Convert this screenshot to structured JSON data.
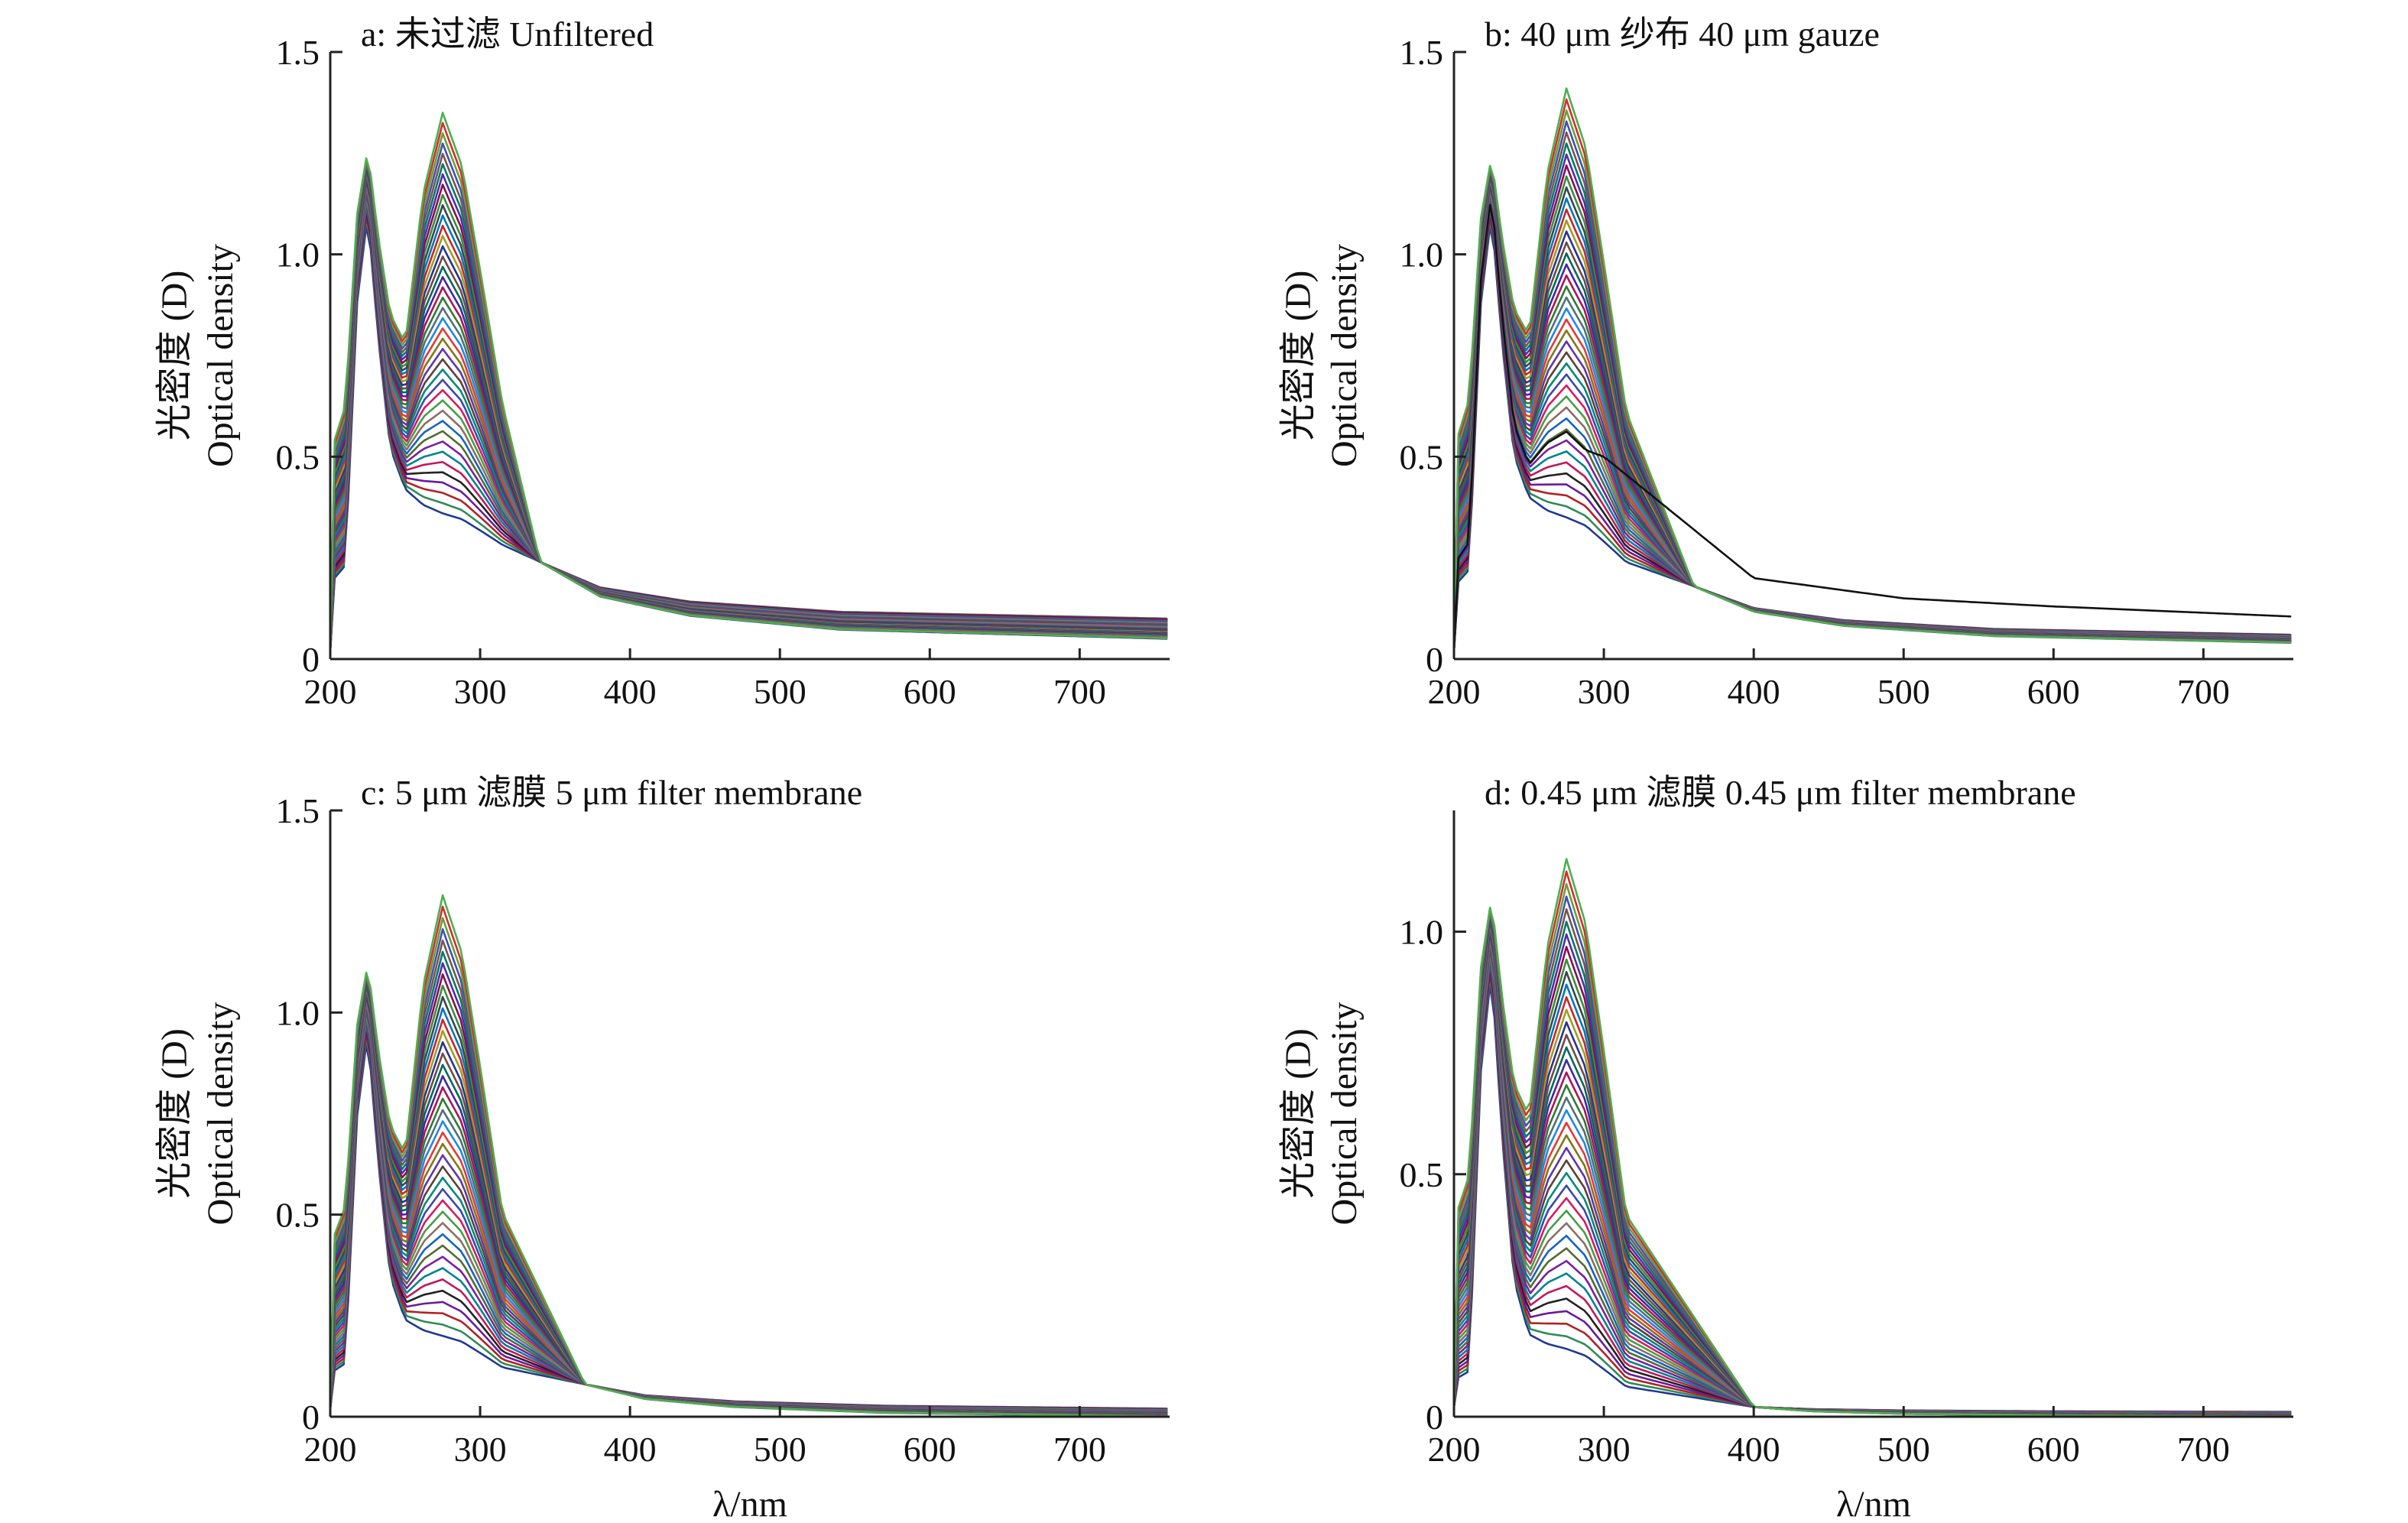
{
  "chart_data": [
    {
      "panel": "a",
      "type": "line",
      "title": "a: 未过滤 Unfiltered",
      "ylabel_cn": "光密度 (D)",
      "ylabel_en": "Optical density",
      "xlabel": "",
      "xlim": [
        200,
        760
      ],
      "ylim": [
        0,
        1.5
      ],
      "xticks": [
        "200",
        "300",
        "400",
        "500",
        "600",
        "700"
      ],
      "yticks": [
        "0",
        "0.5",
        "1.0",
        "1.5"
      ],
      "grid": false,
      "series_summary": {
        "count": 40,
        "x_peak1": 225,
        "peak1_range": [
          1.1,
          1.26
        ],
        "x_trough": 250,
        "trough_range": [
          0.42,
          0.78
        ],
        "x_peak2": 275,
        "peak2_range": [
          0.36,
          1.35
        ],
        "crossover": [
          340,
          0.24
        ],
        "tail_at_760_range": [
          0.05,
          0.1
        ]
      }
    },
    {
      "panel": "b",
      "type": "line",
      "title": "b: 40 μm 纱布 40 μm gauze",
      "ylabel_cn": "光密度 (D)",
      "ylabel_en": "Optical density",
      "xlabel": "",
      "xlim": [
        200,
        760
      ],
      "ylim": [
        0,
        1.5
      ],
      "xticks": [
        "200",
        "300",
        "400",
        "500",
        "600",
        "700"
      ],
      "yticks": [
        "0",
        "0.5",
        "1.0",
        "1.5"
      ],
      "grid": false,
      "series_summary": {
        "count": 40,
        "x_peak1": 225,
        "peak1_range": [
          1.1,
          1.24
        ],
        "x_trough": 250,
        "trough_range": [
          0.4,
          0.8
        ],
        "x_peak2": 275,
        "peak2_range": [
          0.35,
          1.41
        ],
        "crossover": [
          360,
          0.18
        ],
        "tail_at_760_range": [
          0.04,
          0.06
        ],
        "outlier_tail": [
          [
            300,
            0.5
          ],
          [
            400,
            0.2
          ],
          [
            500,
            0.15
          ],
          [
            600,
            0.13
          ],
          [
            760,
            0.105
          ]
        ]
      }
    },
    {
      "panel": "c",
      "type": "line",
      "title": "c: 5 μm 滤膜 5 μm filter membrane",
      "ylabel_cn": "光密度 (D)",
      "ylabel_en": "Optical density",
      "xlabel": "λ/nm",
      "xlim": [
        200,
        760
      ],
      "ylim": [
        0,
        1.5
      ],
      "xticks": [
        "200",
        "300",
        "400",
        "500",
        "600",
        "700"
      ],
      "yticks": [
        "0",
        "0.5",
        "1.0",
        "1.5"
      ],
      "grid": false,
      "series_summary": {
        "count": 40,
        "x_peak1": 225,
        "peak1_range": [
          0.95,
          1.12
        ],
        "x_trough": 250,
        "trough_range": [
          0.24,
          0.65
        ],
        "x_peak2": 275,
        "peak2_range": [
          0.2,
          1.29
        ],
        "crossover": [
          370,
          0.08
        ],
        "tail_at_760_range": [
          0.0,
          0.02
        ]
      }
    },
    {
      "panel": "d",
      "type": "line",
      "title": "d: 0.45 μm 滤膜 0.45 μm filter membrane",
      "ylabel_cn": "光密度 (D)",
      "ylabel_en": "Optical density",
      "xlabel": "λ/nm",
      "xlim": [
        200,
        760
      ],
      "ylim": [
        0,
        1.25
      ],
      "xticks": [
        "200",
        "300",
        "400",
        "500",
        "600",
        "700"
      ],
      "yticks": [
        "0",
        "0.5",
        "1.0"
      ],
      "grid": false,
      "series_summary": {
        "count": 40,
        "x_peak1": 225,
        "peak1_range": [
          0.92,
          1.07
        ],
        "x_trough": 250,
        "trough_range": [
          0.17,
          0.62
        ],
        "x_peak2": 275,
        "peak2_range": [
          0.14,
          1.15
        ],
        "crossover": [
          400,
          0.02
        ],
        "tail_at_760_range": [
          0.0,
          0.01
        ]
      }
    }
  ],
  "series_colors": [
    "#1f3a93",
    "#2e8b57",
    "#b22222",
    "#6a1b9a",
    "#222222",
    "#c2185b",
    "#00838f",
    "#7b1fa2",
    "#556b2f",
    "#1565c0",
    "#8d6e63",
    "#43a047",
    "#d81b60",
    "#3949ab",
    "#00897b",
    "#5d4037",
    "#5e35b1",
    "#827717",
    "#e53935",
    "#1e88e5",
    "#546e7a",
    "#2e7d32",
    "#ad1457",
    "#4527a0",
    "#00695c",
    "#6d4c41",
    "#283593",
    "#9e9d24",
    "#c62828",
    "#0277bd",
    "#37474f",
    "#388e3c",
    "#880e4f",
    "#512da8",
    "#00796b",
    "#795548",
    "#3f51b5",
    "#689f38",
    "#d32f2f",
    "#4caf50"
  ]
}
